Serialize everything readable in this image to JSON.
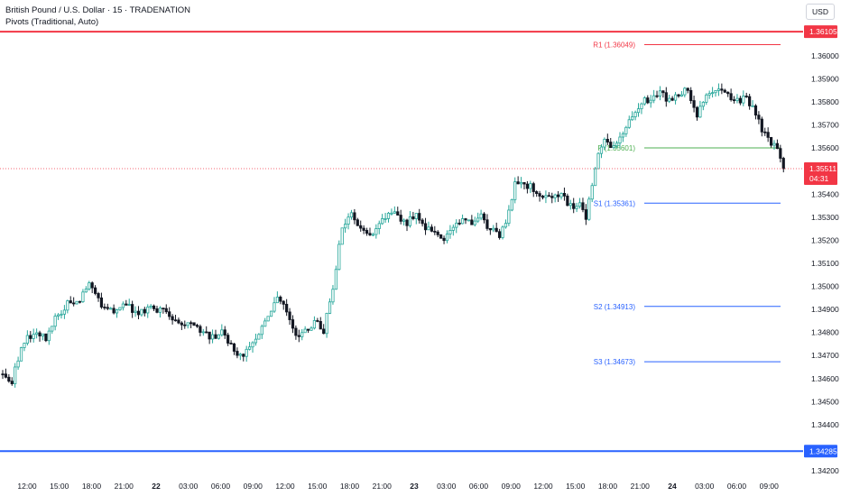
{
  "header": {
    "symbol_line": "British Pound / U.S. Dollar · 15 · TRADENATION",
    "indicator_line": "Pivots (Traditional, Auto)",
    "currency": "USD"
  },
  "colors": {
    "up": "#26a69a",
    "candle_body": "#131722",
    "resistance": "#f23645",
    "pivot": "#4caf50",
    "support": "#2962ff",
    "price_tag": "#f23645"
  },
  "price_axis": {
    "tick_labels": [
      "1.36000",
      "1.35900",
      "1.35800",
      "1.35700",
      "1.35600",
      "1.35400",
      "1.35300",
      "1.35200",
      "1.35100",
      "1.35000",
      "1.34900",
      "1.34800",
      "1.34700",
      "1.34600",
      "1.34500",
      "1.34400",
      "1.34200"
    ],
    "current_price": "1.35511",
    "countdown": "04:31",
    "top_level_tag": "1.36105",
    "bottom_level_tag": "1.34285"
  },
  "time_axis": {
    "labels": [
      {
        "text": "12:00",
        "bold": false
      },
      {
        "text": "15:00",
        "bold": false
      },
      {
        "text": "18:00",
        "bold": false
      },
      {
        "text": "21:00",
        "bold": false
      },
      {
        "text": "22",
        "bold": true
      },
      {
        "text": "03:00",
        "bold": false
      },
      {
        "text": "06:00",
        "bold": false
      },
      {
        "text": "09:00",
        "bold": false
      },
      {
        "text": "12:00",
        "bold": false
      },
      {
        "text": "15:00",
        "bold": false
      },
      {
        "text": "18:00",
        "bold": false
      },
      {
        "text": "21:00",
        "bold": false
      },
      {
        "text": "23",
        "bold": true
      },
      {
        "text": "03:00",
        "bold": false
      },
      {
        "text": "06:00",
        "bold": false
      },
      {
        "text": "09:00",
        "bold": false
      },
      {
        "text": "12:00",
        "bold": false
      },
      {
        "text": "15:00",
        "bold": false
      },
      {
        "text": "18:00",
        "bold": false
      },
      {
        "text": "21:00",
        "bold": false
      },
      {
        "text": "24",
        "bold": true
      },
      {
        "text": "03:00",
        "bold": false
      },
      {
        "text": "06:00",
        "bold": false
      },
      {
        "text": "09:00",
        "bold": false
      }
    ]
  },
  "pivots": [
    {
      "label": "R1 (1.36049)",
      "value": 1.36049,
      "color": "#f23645"
    },
    {
      "label": "P (1.35601)",
      "value": 1.35601,
      "color": "#4caf50"
    },
    {
      "label": "S1 (1.35361)",
      "value": 1.35361,
      "color": "#2962ff"
    },
    {
      "label": "S2 (1.34913)",
      "value": 1.34913,
      "color": "#2962ff"
    },
    {
      "label": "S3 (1.34673)",
      "value": 1.34673,
      "color": "#2962ff"
    }
  ],
  "chart_data": {
    "type": "candlestick",
    "title": "British Pound / U.S. Dollar · 15 · TRADENATION",
    "indicator": "Pivots (Traditional, Auto)",
    "ylim": [
      1.3418,
      1.362
    ],
    "horizontal_levels": [
      1.36105,
      1.34285
    ],
    "current_price": 1.35511,
    "close_path": [
      [
        0,
        1.3462
      ],
      [
        3,
        1.3458
      ],
      [
        6,
        1.3475
      ],
      [
        10,
        1.348
      ],
      [
        14,
        1.3478
      ],
      [
        18,
        1.3488
      ],
      [
        21,
        1.3493
      ],
      [
        25,
        1.3495
      ],
      [
        28,
        1.35
      ],
      [
        32,
        1.3492
      ],
      [
        36,
        1.349
      ],
      [
        40,
        1.3492
      ],
      [
        44,
        1.3488
      ],
      [
        48,
        1.349
      ],
      [
        50,
        1.349
      ],
      [
        53,
        1.3488
      ],
      [
        57,
        1.3484
      ],
      [
        61,
        1.3483
      ],
      [
        64,
        1.348
      ],
      [
        68,
        1.3478
      ],
      [
        71,
        1.348
      ],
      [
        74,
        1.3475
      ],
      [
        77,
        1.347
      ],
      [
        80,
        1.3472
      ],
      [
        83,
        1.348
      ],
      [
        86,
        1.3488
      ],
      [
        89,
        1.3495
      ],
      [
        92,
        1.349
      ],
      [
        95,
        1.3478
      ],
      [
        98,
        1.348
      ],
      [
        101,
        1.3485
      ],
      [
        104,
        1.348
      ],
      [
        107,
        1.35
      ],
      [
        110,
        1.3525
      ],
      [
        113,
        1.3532
      ],
      [
        116,
        1.3525
      ],
      [
        119,
        1.3522
      ],
      [
        122,
        1.3528
      ],
      [
        125,
        1.3532
      ],
      [
        128,
        1.353
      ],
      [
        131,
        1.3528
      ],
      [
        134,
        1.353
      ],
      [
        137,
        1.3525
      ],
      [
        140,
        1.3522
      ],
      [
        143,
        1.352
      ],
      [
        146,
        1.3525
      ],
      [
        149,
        1.353
      ],
      [
        152,
        1.3528
      ],
      [
        155,
        1.353
      ],
      [
        158,
        1.3525
      ],
      [
        161,
        1.3522
      ],
      [
        163,
        1.3528
      ],
      [
        166,
        1.3545
      ],
      [
        169,
        1.3545
      ],
      [
        172,
        1.3542
      ],
      [
        175,
        1.354
      ],
      [
        178,
        1.3538
      ],
      [
        181,
        1.354
      ],
      [
        184,
        1.3535
      ],
      [
        187,
        1.3535
      ],
      [
        189,
        1.353
      ],
      [
        192,
        1.3552
      ],
      [
        195,
        1.3565
      ],
      [
        198,
        1.356
      ],
      [
        201,
        1.3565
      ],
      [
        204,
        1.3575
      ],
      [
        207,
        1.358
      ],
      [
        210,
        1.3582
      ],
      [
        213,
        1.3585
      ],
      [
        216,
        1.358
      ],
      [
        219,
        1.3583
      ],
      [
        222,
        1.3585
      ],
      [
        225,
        1.3575
      ],
      [
        228,
        1.3582
      ],
      [
        231,
        1.3585
      ],
      [
        234,
        1.3583
      ],
      [
        237,
        1.358
      ],
      [
        240,
        1.3582
      ],
      [
        243,
        1.3578
      ],
      [
        246,
        1.3568
      ],
      [
        249,
        1.3562
      ],
      [
        251,
        1.356
      ],
      [
        253,
        1.3551
      ]
    ]
  }
}
